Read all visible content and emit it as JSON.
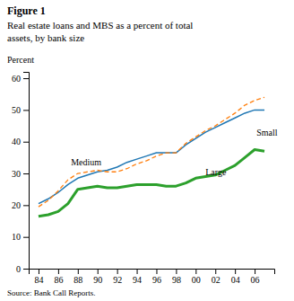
{
  "chart_data": {
    "type": "line",
    "title": "Figure 1",
    "subtitle": [
      "Real estate loans and MBS as a percent of total",
      "assets, by bank size"
    ],
    "y_label": "Percent",
    "source": "Source: Bank Call Reports.",
    "x": [
      84,
      85,
      86,
      87,
      88,
      89,
      90,
      91,
      92,
      93,
      94,
      95,
      96,
      97,
      98,
      99,
      100,
      101,
      102,
      103,
      104,
      105,
      106,
      107
    ],
    "series": [
      {
        "line_style": "solid",
        "values": [
          20.5,
          22.0,
          24.0,
          26.5,
          28.5,
          29.5,
          30.5,
          31.0,
          32.0,
          33.5,
          34.5,
          35.5,
          36.5,
          36.5,
          36.5,
          39.0,
          41.0,
          43.0,
          44.5,
          46.0,
          47.5,
          49.0,
          50.0,
          50.0
        ]
      },
      {
        "line_style": "dashed",
        "values": [
          19.5,
          21.5,
          24.5,
          28.0,
          30.0,
          30.5,
          31.0,
          30.5,
          30.5,
          31.5,
          33.0,
          34.0,
          35.5,
          36.5,
          36.5,
          39.5,
          41.5,
          43.5,
          45.0,
          47.0,
          49.0,
          51.5,
          53.0,
          54.0
        ]
      },
      {
        "line_style": "solid",
        "values": [
          16.5,
          17.0,
          18.0,
          20.5,
          25.0,
          25.5,
          26.0,
          25.5,
          25.5,
          26.0,
          26.5,
          26.5,
          26.5,
          26.0,
          26.0,
          27.0,
          28.5,
          29.0,
          29.5,
          31.0,
          32.5,
          35.0,
          37.5,
          37.0
        ]
      }
    ],
    "annotations": [
      {
        "text": "Small",
        "x": 106.2,
        "y": 43.0
      },
      {
        "text": "Medium",
        "x": 87.3,
        "y": 33.5
      },
      {
        "text": "Large",
        "x": 101.0,
        "y": 30.5
      }
    ],
    "xlim": [
      83,
      108
    ],
    "xticks": [
      84,
      86,
      88,
      90,
      92,
      94,
      96,
      98,
      {
        "value": 100,
        "label": "00"
      },
      {
        "value": 102,
        "label": "02"
      },
      {
        "value": 104,
        "label": "04"
      },
      {
        "value": 106,
        "label": "06"
      }
    ],
    "ylim": [
      0,
      62
    ],
    "yticks": [
      0,
      10,
      20,
      30,
      40,
      50,
      60
    ],
    "grid": false
  }
}
